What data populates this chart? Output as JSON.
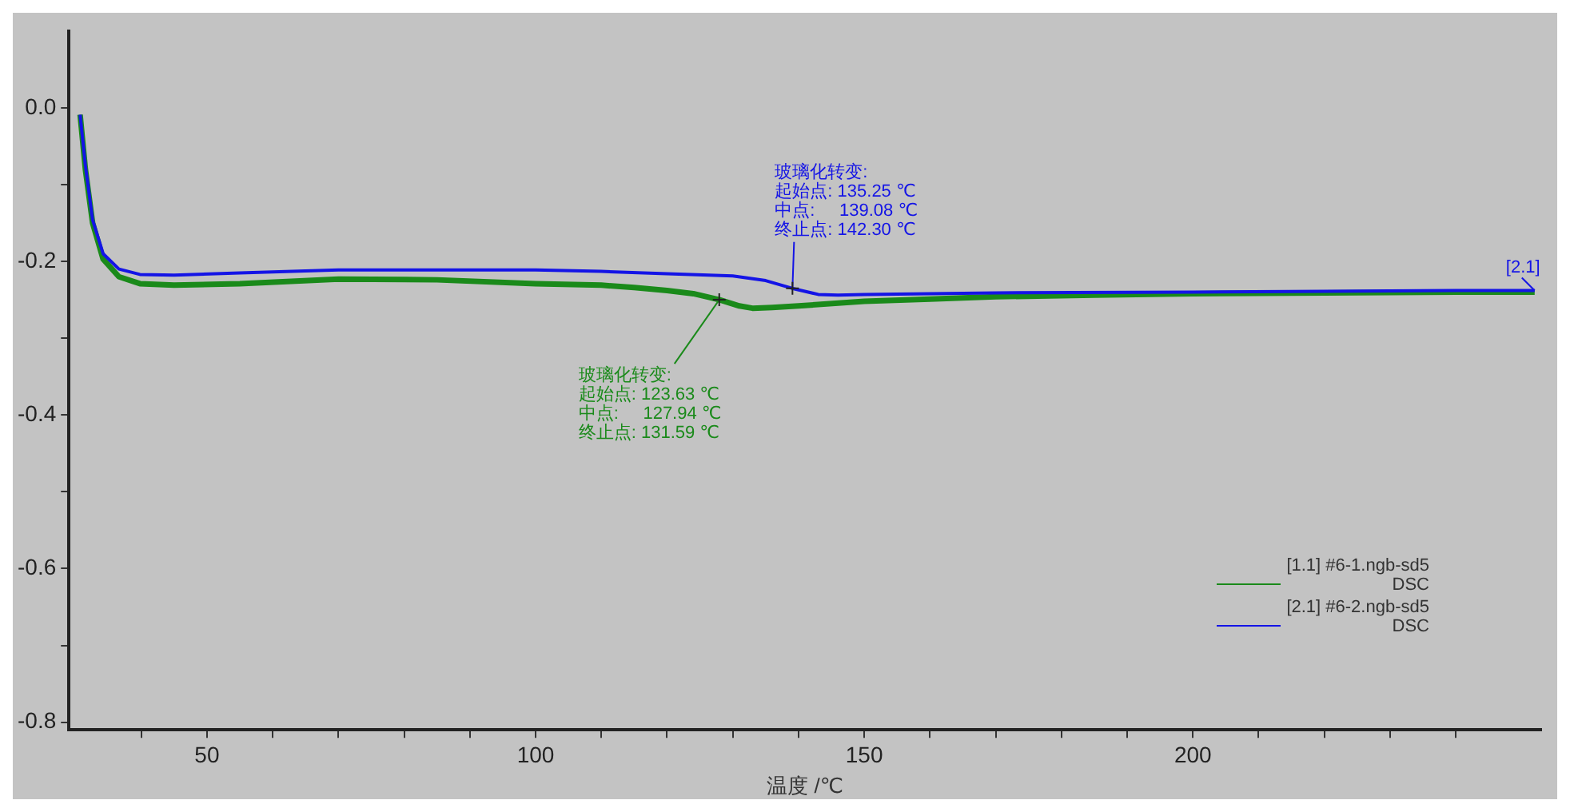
{
  "chart_data": {
    "type": "line",
    "xlabel": "温度 /℃",
    "xlim": [
      29,
      253
    ],
    "xticks": [
      {
        "value": 40,
        "label": null
      },
      50,
      {
        "value": 60,
        "label": null
      },
      {
        "value": 70,
        "label": null
      },
      {
        "value": 80,
        "label": null
      },
      {
        "value": 90,
        "label": null
      },
      100,
      {
        "value": 110,
        "label": null
      },
      {
        "value": 120,
        "label": null
      },
      {
        "value": 130,
        "label": null
      },
      {
        "value": 140,
        "label": null
      },
      150,
      {
        "value": 160,
        "label": null
      },
      {
        "value": 170,
        "label": null
      },
      {
        "value": 180,
        "label": null
      },
      {
        "value": 190,
        "label": null
      },
      200,
      {
        "value": 210,
        "label": null
      },
      {
        "value": 220,
        "label": null
      },
      {
        "value": 230,
        "label": null
      },
      {
        "value": 240,
        "label": null
      }
    ],
    "ylim": [
      -0.81,
      0.1
    ],
    "yticks": [
      {
        "value": -0.8,
        "label": "-0.8"
      },
      {
        "value": -0.7,
        "label": null
      },
      {
        "value": -0.6,
        "label": "-0.6"
      },
      {
        "value": -0.5,
        "label": null
      },
      {
        "value": -0.4,
        "label": "-0.4"
      },
      {
        "value": -0.3,
        "label": null
      },
      {
        "value": -0.2,
        "label": "-0.2"
      },
      {
        "value": -0.1,
        "label": null
      },
      {
        "value": 0,
        "label": "0.0"
      }
    ],
    "grid": false,
    "legend": "bottom right",
    "marker": "none",
    "line_style": "solid",
    "series": [
      {
        "name": "[1.1] #6-1.ngb-sd5\nDSC",
        "color": "#1a8a1a",
        "x": [
          30.7,
          31.5,
          32.6,
          34.2,
          36.6,
          39.8,
          45,
          55,
          70,
          85,
          100,
          110,
          115,
          120,
          124,
          128,
          131,
          133,
          136,
          140,
          150,
          160,
          170,
          185,
          200,
          220,
          240,
          252
        ],
        "values": [
          -0.009,
          -0.08,
          -0.15,
          -0.197,
          -0.22,
          -0.229,
          -0.231,
          -0.229,
          -0.223,
          -0.224,
          -0.229,
          -0.231,
          -0.234,
          -0.238,
          -0.242,
          -0.25,
          -0.258,
          -0.261,
          -0.26,
          -0.258,
          -0.252,
          -0.249,
          -0.246,
          -0.244,
          -0.242,
          -0.241,
          -0.24,
          -0.24
        ]
      },
      {
        "name": "[2.1] #6-2.ngb-sd5\nDSC",
        "color": "#1414e6",
        "x": [
          30.7,
          31.5,
          32.6,
          34.2,
          36.6,
          39.8,
          45,
          55,
          70,
          85,
          100,
          110,
          120,
          130,
          135,
          139,
          143,
          146,
          150,
          170,
          200,
          220,
          240,
          252
        ],
        "values": [
          -0.009,
          -0.075,
          -0.146,
          -0.19,
          -0.21,
          -0.217,
          -0.218,
          -0.215,
          -0.211,
          -0.211,
          -0.211,
          -0.213,
          -0.216,
          -0.219,
          -0.225,
          -0.235,
          -0.243,
          -0.244,
          -0.243,
          -0.241,
          -0.24,
          -0.239,
          -0.238,
          -0.238
        ]
      }
    ],
    "annotations": [
      {
        "text": "玻璃化转变:\n起始点: 123.63 ℃\n中点:     127.94 ℃\n终止点: 131.59 ℃",
        "x": 127.94,
        "y": -0.25
      },
      {
        "text": "玻璃化转变:\n起始点: 135.25 ℃\n中点:     139.08 ℃\n终止点: 142.30 ℃",
        "x": 139.08,
        "y": -0.235
      },
      {
        "text": "[2.1]",
        "x": 252,
        "y": -0.238
      }
    ]
  }
}
